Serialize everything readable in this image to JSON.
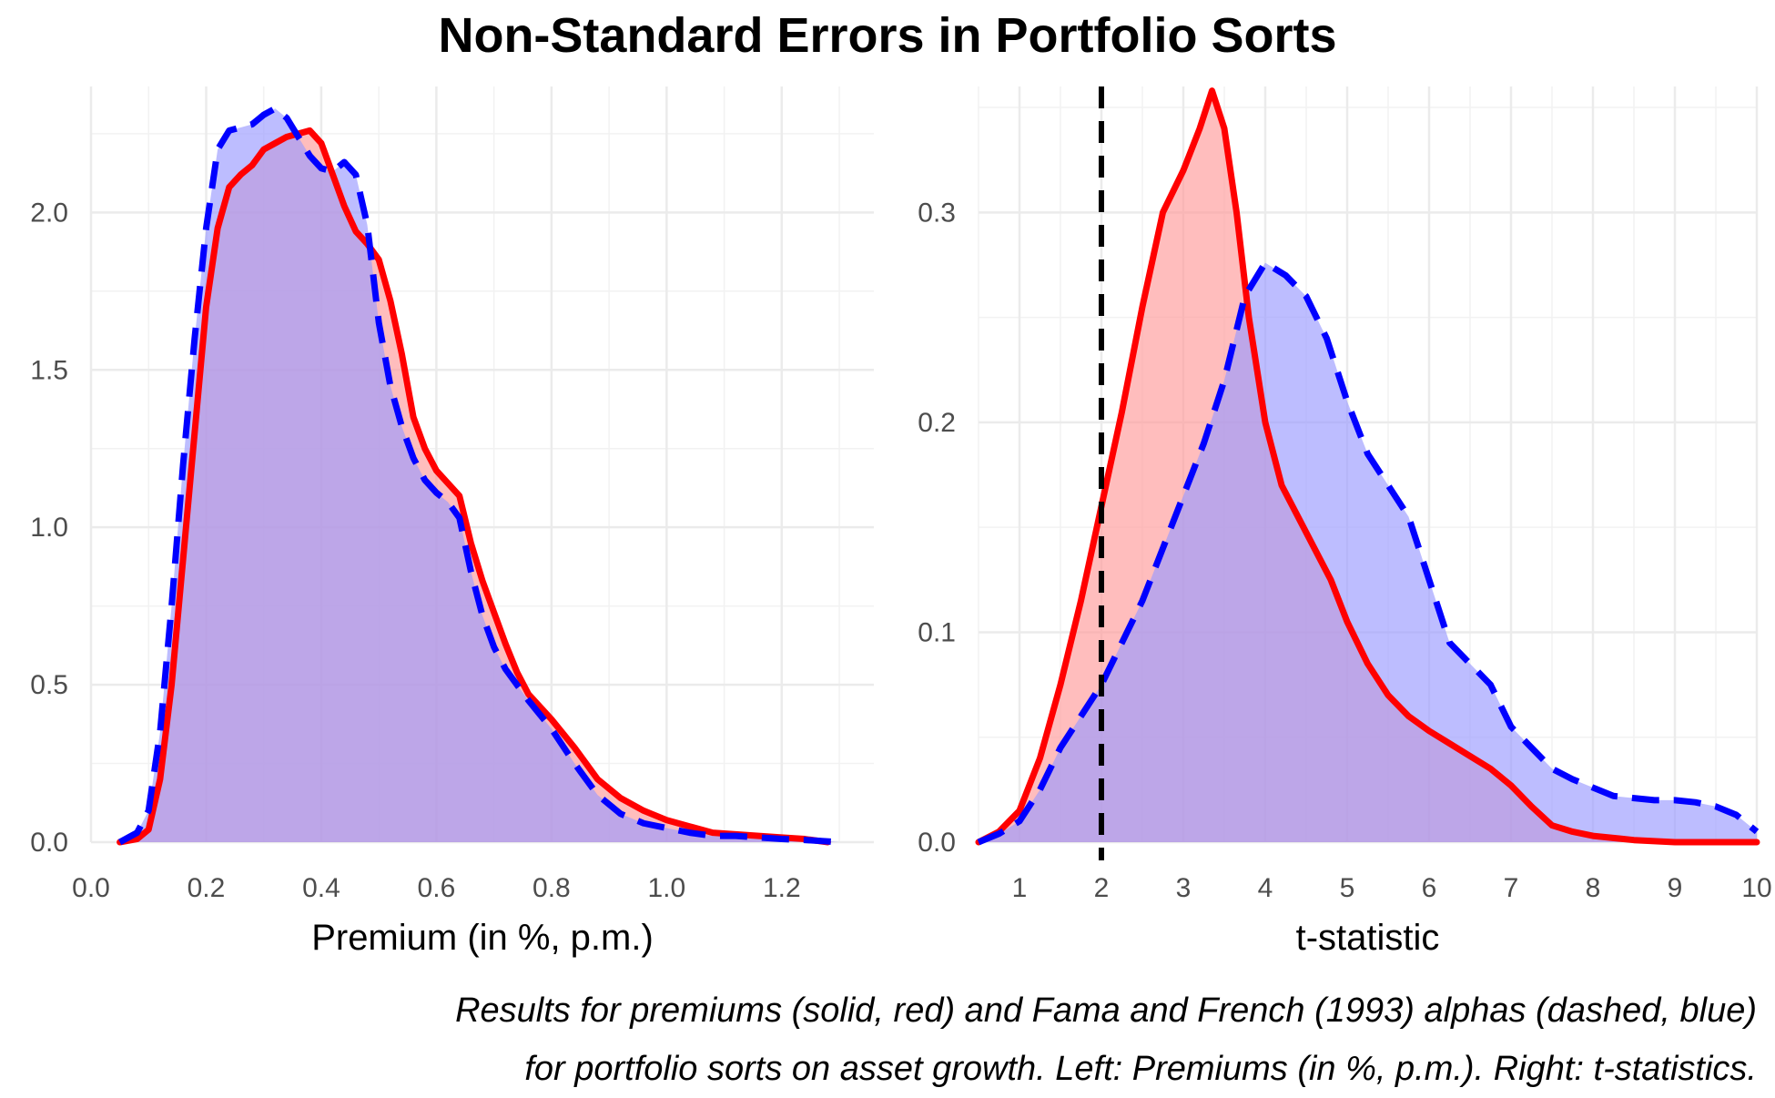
{
  "title": "Non-Standard Errors in Portfolio Sorts",
  "caption": {
    "line1": "Results for premiums (solid, red) and Fama and French (1993) alphas (dashed, blue)",
    "line2": "for portfolio sorts on asset growth. Left: Premiums (in %, p.m.). Right: t-statistics."
  },
  "colors": {
    "premium_line": "#ff0000",
    "premium_fill": "#ff9999",
    "alpha_line": "#0000ff",
    "alpha_fill": "#9999ff",
    "threshold_line": "#000000",
    "grid": "#ebebeb"
  },
  "chart_data": [
    {
      "type": "area",
      "xlabel": "Premium (in %, p.m.)",
      "ylabel": "",
      "xlim": [
        0.0,
        1.36
      ],
      "ylim": [
        0.0,
        2.4
      ],
      "xticks": [
        "0.0",
        "0.2",
        "0.4",
        "0.6",
        "0.8",
        "1.0",
        "1.2"
      ],
      "xtick_values": [
        0.0,
        0.2,
        0.4,
        0.6,
        0.8,
        1.0,
        1.2
      ],
      "yticks": [
        "0.0",
        "0.5",
        "1.0",
        "1.5",
        "2.0"
      ],
      "ytick_values": [
        0.0,
        0.5,
        1.0,
        1.5,
        2.0
      ],
      "grid": true,
      "series": [
        {
          "line": "solid",
          "color": "#ff0000",
          "points": [
            [
              0.05,
              0.0
            ],
            [
              0.08,
              0.01
            ],
            [
              0.1,
              0.04
            ],
            [
              0.12,
              0.2
            ],
            [
              0.14,
              0.5
            ],
            [
              0.16,
              0.9
            ],
            [
              0.18,
              1.3
            ],
            [
              0.2,
              1.7
            ],
            [
              0.22,
              1.95
            ],
            [
              0.24,
              2.08
            ],
            [
              0.26,
              2.12
            ],
            [
              0.28,
              2.15
            ],
            [
              0.3,
              2.2
            ],
            [
              0.32,
              2.22
            ],
            [
              0.34,
              2.24
            ],
            [
              0.36,
              2.25
            ],
            [
              0.38,
              2.26
            ],
            [
              0.4,
              2.22
            ],
            [
              0.42,
              2.12
            ],
            [
              0.44,
              2.02
            ],
            [
              0.46,
              1.94
            ],
            [
              0.48,
              1.9
            ],
            [
              0.5,
              1.85
            ],
            [
              0.52,
              1.72
            ],
            [
              0.54,
              1.55
            ],
            [
              0.56,
              1.35
            ],
            [
              0.58,
              1.25
            ],
            [
              0.6,
              1.18
            ],
            [
              0.62,
              1.14
            ],
            [
              0.64,
              1.1
            ],
            [
              0.66,
              0.95
            ],
            [
              0.68,
              0.83
            ],
            [
              0.7,
              0.73
            ],
            [
              0.72,
              0.63
            ],
            [
              0.74,
              0.54
            ],
            [
              0.76,
              0.47
            ],
            [
              0.8,
              0.39
            ],
            [
              0.84,
              0.3
            ],
            [
              0.88,
              0.2
            ],
            [
              0.92,
              0.14
            ],
            [
              0.96,
              0.1
            ],
            [
              1.0,
              0.07
            ],
            [
              1.04,
              0.05
            ],
            [
              1.08,
              0.03
            ],
            [
              1.12,
              0.025
            ],
            [
              1.16,
              0.02
            ],
            [
              1.2,
              0.015
            ],
            [
              1.24,
              0.01
            ],
            [
              1.28,
              0.0
            ]
          ]
        },
        {
          "line": "dashed",
          "color": "#0000ff",
          "points": [
            [
              0.05,
              0.0
            ],
            [
              0.08,
              0.03
            ],
            [
              0.1,
              0.1
            ],
            [
              0.12,
              0.35
            ],
            [
              0.14,
              0.75
            ],
            [
              0.16,
              1.2
            ],
            [
              0.18,
              1.6
            ],
            [
              0.2,
              1.95
            ],
            [
              0.22,
              2.2
            ],
            [
              0.24,
              2.26
            ],
            [
              0.26,
              2.27
            ],
            [
              0.28,
              2.28
            ],
            [
              0.3,
              2.31
            ],
            [
              0.32,
              2.33
            ],
            [
              0.34,
              2.3
            ],
            [
              0.36,
              2.24
            ],
            [
              0.38,
              2.18
            ],
            [
              0.4,
              2.14
            ],
            [
              0.42,
              2.13
            ],
            [
              0.44,
              2.16
            ],
            [
              0.46,
              2.12
            ],
            [
              0.48,
              1.96
            ],
            [
              0.5,
              1.65
            ],
            [
              0.52,
              1.45
            ],
            [
              0.54,
              1.32
            ],
            [
              0.56,
              1.22
            ],
            [
              0.58,
              1.15
            ],
            [
              0.6,
              1.11
            ],
            [
              0.62,
              1.08
            ],
            [
              0.64,
              1.03
            ],
            [
              0.66,
              0.86
            ],
            [
              0.68,
              0.72
            ],
            [
              0.7,
              0.62
            ],
            [
              0.72,
              0.55
            ],
            [
              0.76,
              0.45
            ],
            [
              0.8,
              0.36
            ],
            [
              0.84,
              0.25
            ],
            [
              0.88,
              0.15
            ],
            [
              0.92,
              0.09
            ],
            [
              0.96,
              0.06
            ],
            [
              1.0,
              0.045
            ],
            [
              1.04,
              0.03
            ],
            [
              1.08,
              0.02
            ],
            [
              1.12,
              0.02
            ],
            [
              1.16,
              0.015
            ],
            [
              1.2,
              0.01
            ],
            [
              1.24,
              0.007
            ],
            [
              1.3,
              0.0
            ]
          ]
        }
      ]
    },
    {
      "type": "area",
      "xlabel": "t-statistic",
      "ylabel": "",
      "xlim": [
        0.5,
        10.0
      ],
      "ylim": [
        0.0,
        0.36
      ],
      "xticks": [
        "1",
        "2",
        "3",
        "4",
        "5",
        "6",
        "7",
        "8",
        "9",
        "10"
      ],
      "xtick_values": [
        1,
        2,
        3,
        4,
        5,
        6,
        7,
        8,
        9,
        10
      ],
      "yticks": [
        "0.0",
        "0.1",
        "0.2",
        "0.3"
      ],
      "ytick_values": [
        0.0,
        0.1,
        0.2,
        0.3
      ],
      "vline": {
        "x": 2.0,
        "line": "dashed",
        "color": "#000000"
      },
      "grid": true,
      "series": [
        {
          "line": "solid",
          "color": "#ff0000",
          "points": [
            [
              0.5,
              0.0
            ],
            [
              0.75,
              0.005
            ],
            [
              1.0,
              0.015
            ],
            [
              1.25,
              0.04
            ],
            [
              1.5,
              0.075
            ],
            [
              1.75,
              0.115
            ],
            [
              2.0,
              0.16
            ],
            [
              2.25,
              0.205
            ],
            [
              2.5,
              0.255
            ],
            [
              2.75,
              0.3
            ],
            [
              3.0,
              0.32
            ],
            [
              3.2,
              0.34
            ],
            [
              3.35,
              0.358
            ],
            [
              3.5,
              0.34
            ],
            [
              3.65,
              0.3
            ],
            [
              3.8,
              0.25
            ],
            [
              4.0,
              0.2
            ],
            [
              4.2,
              0.17
            ],
            [
              4.4,
              0.155
            ],
            [
              4.6,
              0.14
            ],
            [
              4.8,
              0.125
            ],
            [
              5.0,
              0.105
            ],
            [
              5.25,
              0.085
            ],
            [
              5.5,
              0.07
            ],
            [
              5.75,
              0.06
            ],
            [
              6.0,
              0.053
            ],
            [
              6.25,
              0.047
            ],
            [
              6.5,
              0.041
            ],
            [
              6.75,
              0.035
            ],
            [
              7.0,
              0.027
            ],
            [
              7.25,
              0.017
            ],
            [
              7.5,
              0.008
            ],
            [
              7.75,
              0.005
            ],
            [
              8.0,
              0.003
            ],
            [
              8.5,
              0.001
            ],
            [
              9.0,
              0.0
            ],
            [
              10.0,
              0.0
            ]
          ]
        },
        {
          "line": "dashed",
          "color": "#0000ff",
          "points": [
            [
              0.5,
              0.0
            ],
            [
              0.75,
              0.004
            ],
            [
              1.0,
              0.01
            ],
            [
              1.25,
              0.025
            ],
            [
              1.5,
              0.045
            ],
            [
              1.75,
              0.06
            ],
            [
              2.0,
              0.075
            ],
            [
              2.25,
              0.095
            ],
            [
              2.5,
              0.115
            ],
            [
              2.75,
              0.14
            ],
            [
              3.0,
              0.165
            ],
            [
              3.25,
              0.19
            ],
            [
              3.5,
              0.22
            ],
            [
              3.75,
              0.26
            ],
            [
              4.0,
              0.276
            ],
            [
              4.25,
              0.27
            ],
            [
              4.5,
              0.26
            ],
            [
              4.75,
              0.24
            ],
            [
              5.0,
              0.21
            ],
            [
              5.25,
              0.185
            ],
            [
              5.5,
              0.17
            ],
            [
              5.75,
              0.155
            ],
            [
              6.0,
              0.125
            ],
            [
              6.25,
              0.095
            ],
            [
              6.5,
              0.085
            ],
            [
              6.75,
              0.075
            ],
            [
              7.0,
              0.055
            ],
            [
              7.25,
              0.045
            ],
            [
              7.5,
              0.035
            ],
            [
              7.75,
              0.03
            ],
            [
              8.0,
              0.026
            ],
            [
              8.25,
              0.022
            ],
            [
              8.5,
              0.021
            ],
            [
              8.75,
              0.02
            ],
            [
              9.0,
              0.02
            ],
            [
              9.25,
              0.019
            ],
            [
              9.5,
              0.017
            ],
            [
              9.75,
              0.013
            ],
            [
              10.0,
              0.005
            ]
          ]
        }
      ]
    }
  ]
}
